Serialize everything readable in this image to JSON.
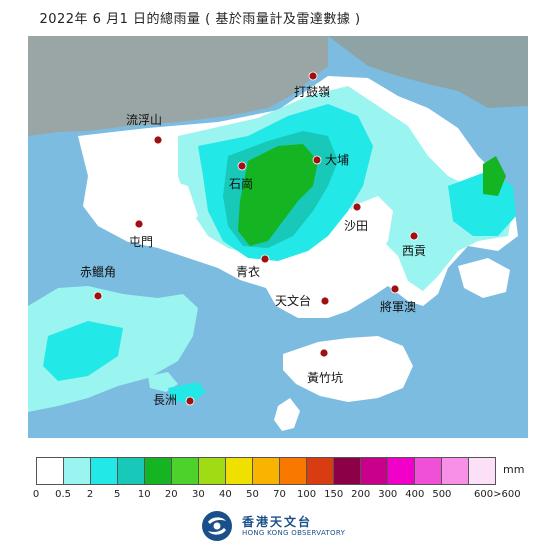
{
  "title": "2022年  6   月1   日的總雨量 ( 基於雨量計及雷達數據 )",
  "stations": [
    {
      "name": "打鼓嶺"
    },
    {
      "name": "流浮山"
    },
    {
      "name": "大埔"
    },
    {
      "name": "石崗"
    },
    {
      "name": "屯門"
    },
    {
      "name": "沙田"
    },
    {
      "name": "西貢"
    },
    {
      "name": "赤鱲角"
    },
    {
      "name": "青衣"
    },
    {
      "name": "天文台"
    },
    {
      "name": "將軍澳"
    },
    {
      "name": "黃竹坑"
    },
    {
      "name": "長洲"
    }
  ],
  "legend": {
    "unit": "mm",
    "ticks": [
      "0",
      "0.5",
      "2",
      "5",
      "10",
      "20",
      "30",
      "40",
      "50",
      "70",
      "100",
      "150",
      "200",
      "300",
      "400",
      "500",
      "600>600"
    ],
    "colors": [
      "#ffffff",
      "#9af4f0",
      "#22e8e8",
      "#18c8b8",
      "#14b423",
      "#4cd22a",
      "#a0dc14",
      "#f0e000",
      "#f8b400",
      "#f87800",
      "#d83c10",
      "#8c0048",
      "#c8008c",
      "#f000c8",
      "#f050d8",
      "#f890e8",
      "#fce0f8"
    ]
  },
  "logo": {
    "name_zh": "香港天文台",
    "name_en": "HONG KONG OBSERVATORY"
  }
}
